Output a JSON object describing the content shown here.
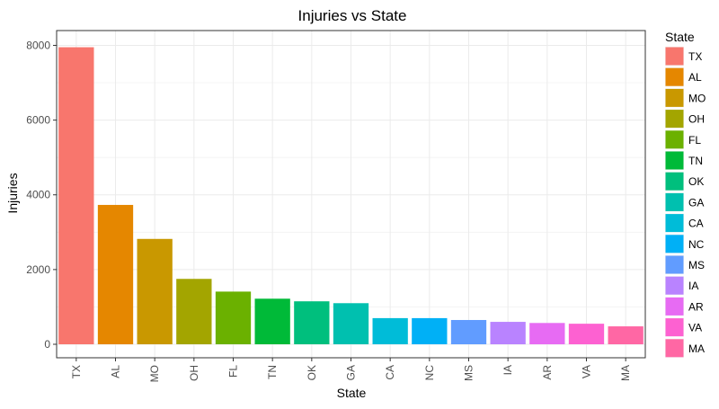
{
  "chart_data": {
    "type": "bar",
    "title": "Injuries vs State",
    "xlabel": "State",
    "ylabel": "Injuries",
    "ylim": [
      0,
      8300
    ],
    "yticks": [
      0,
      2000,
      4000,
      6000,
      8000
    ],
    "grid": true,
    "legend": {
      "title": "State",
      "position": "right"
    },
    "categories": [
      "TX",
      "AL",
      "MO",
      "OH",
      "FL",
      "TN",
      "OK",
      "GA",
      "CA",
      "NC",
      "MS",
      "IA",
      "AR",
      "VA",
      "MA"
    ],
    "values": [
      7950,
      3730,
      2820,
      1750,
      1410,
      1220,
      1150,
      1100,
      700,
      700,
      650,
      600,
      570,
      550,
      480
    ],
    "colors": [
      "#F8766D",
      "#E58700",
      "#C99800",
      "#A3A500",
      "#6BB100",
      "#00BA38",
      "#00BF7D",
      "#00C0AF",
      "#00BCD8",
      "#00B0F6",
      "#619CFF",
      "#B983FF",
      "#E76BF3",
      "#FD61D1",
      "#FF67A4"
    ]
  }
}
